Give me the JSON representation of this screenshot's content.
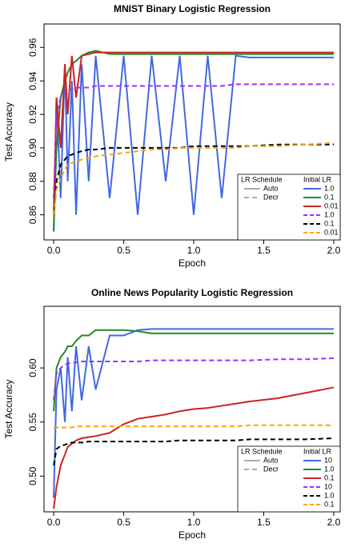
{
  "chart_data": [
    {
      "type": "line",
      "title": "MNIST Binary Logistic Regression",
      "xlabel": "Epoch",
      "ylabel": "Test Accuracy",
      "x": [
        0,
        0.02,
        0.05,
        0.08,
        0.1,
        0.13,
        0.16,
        0.2,
        0.25,
        0.3,
        0.4,
        0.5,
        0.6,
        0.7,
        0.8,
        0.9,
        1.0,
        1.1,
        1.2,
        1.3,
        1.4,
        1.6,
        1.8,
        2.0
      ],
      "series": [
        {
          "name": "1.0",
          "color": "#4169e1",
          "dash": false,
          "values": [
            0.85,
            0.93,
            0.87,
            0.95,
            0.88,
            0.94,
            0.86,
            0.95,
            0.88,
            0.955,
            0.87,
            0.955,
            0.86,
            0.955,
            0.88,
            0.955,
            0.86,
            0.955,
            0.87,
            0.955,
            0.954,
            0.954,
            0.954,
            0.954
          ]
        },
        {
          "name": "0.1",
          "color": "#228b22",
          "dash": false,
          "values": [
            0.85,
            0.9,
            0.93,
            0.94,
            0.945,
            0.95,
            0.952,
            0.955,
            0.957,
            0.958,
            0.956,
            0.956,
            0.956,
            0.956,
            0.956,
            0.956,
            0.956,
            0.956,
            0.956,
            0.956,
            0.956,
            0.956,
            0.956,
            0.956
          ]
        },
        {
          "name": "0.01",
          "color": "#cc2222",
          "dash": false,
          "values": [
            0.86,
            0.93,
            0.9,
            0.95,
            0.92,
            0.955,
            0.93,
            0.955,
            0.956,
            0.957,
            0.957,
            0.957,
            0.957,
            0.957,
            0.957,
            0.957,
            0.957,
            0.957,
            0.957,
            0.957,
            0.957,
            0.957,
            0.957,
            0.957
          ]
        },
        {
          "name": "1.0",
          "color": "#9b30ff",
          "dash": true,
          "values": [
            0.87,
            0.92,
            0.93,
            0.933,
            0.934,
            0.935,
            0.936,
            0.936,
            0.936,
            0.937,
            0.937,
            0.937,
            0.937,
            0.937,
            0.937,
            0.937,
            0.937,
            0.937,
            0.937,
            0.938,
            0.938,
            0.938,
            0.938,
            0.938
          ]
        },
        {
          "name": "0.1",
          "color": "#000000",
          "dash": true,
          "values": [
            0.86,
            0.88,
            0.89,
            0.893,
            0.895,
            0.896,
            0.897,
            0.898,
            0.899,
            0.899,
            0.9,
            0.9,
            0.9,
            0.9,
            0.9,
            0.9,
            0.901,
            0.901,
            0.901,
            0.901,
            0.901,
            0.902,
            0.902,
            0.902
          ]
        },
        {
          "name": "0.01",
          "color": "#ffa500",
          "dash": true,
          "values": [
            0.86,
            0.875,
            0.882,
            0.887,
            0.89,
            0.891,
            0.892,
            0.893,
            0.894,
            0.895,
            0.896,
            0.897,
            0.898,
            0.899,
            0.899,
            0.9,
            0.9,
            0.9,
            0.9,
            0.9,
            0.901,
            0.901,
            0.902,
            0.903
          ]
        }
      ],
      "xlim": [
        -0.069,
        2.046
      ],
      "ylim": [
        0.845,
        0.974
      ],
      "xticks": [
        {
          "value": 0,
          "label": "0.0"
        },
        {
          "value": 0.5,
          "label": "0.5"
        },
        {
          "value": 1,
          "label": "1.0"
        },
        1.5,
        {
          "value": 2,
          "label": "2.0"
        }
      ],
      "yticks": [
        0.86,
        0.88,
        {
          "value": 0.9,
          "label": "0.90"
        },
        0.92,
        0.94,
        0.96
      ],
      "legend": "lower right",
      "legend_title": "Initial LR",
      "schedule_legend": {
        "title": "LR Schedule",
        "entries": [
          "Auto",
          "Decr"
        ]
      }
    },
    {
      "type": "line",
      "title": "Online News Popularity Logistic Regression",
      "xlabel": "Epoch",
      "ylabel": "Test Accuracy",
      "x": [
        0,
        0.02,
        0.05,
        0.08,
        0.1,
        0.13,
        0.16,
        0.2,
        0.25,
        0.3,
        0.4,
        0.5,
        0.6,
        0.7,
        0.8,
        0.9,
        1.0,
        1.1,
        1.2,
        1.3,
        1.4,
        1.6,
        1.8,
        2.0
      ],
      "series": [
        {
          "name": "10",
          "color": "#4169e1",
          "dash": false,
          "values": [
            0.48,
            0.58,
            0.6,
            0.55,
            0.61,
            0.56,
            0.62,
            0.57,
            0.62,
            0.58,
            0.63,
            0.63,
            0.635,
            0.636,
            0.636,
            0.636,
            0.636,
            0.636,
            0.636,
            0.636,
            0.636,
            0.636,
            0.636,
            0.636
          ]
        },
        {
          "name": "1.0",
          "color": "#228b22",
          "dash": false,
          "values": [
            0.56,
            0.6,
            0.61,
            0.615,
            0.62,
            0.62,
            0.625,
            0.63,
            0.63,
            0.635,
            0.635,
            0.635,
            0.634,
            0.632,
            0.632,
            0.632,
            0.632,
            0.632,
            0.632,
            0.632,
            0.632,
            0.632,
            0.632,
            0.632
          ]
        },
        {
          "name": "0.1",
          "color": "#cc2222",
          "dash": false,
          "values": [
            0.47,
            0.49,
            0.51,
            0.52,
            0.527,
            0.53,
            0.533,
            0.535,
            0.536,
            0.537,
            0.54,
            0.548,
            0.553,
            0.555,
            0.557,
            0.56,
            0.562,
            0.563,
            0.565,
            0.567,
            0.569,
            0.572,
            0.577,
            0.582
          ]
        },
        {
          "name": "10",
          "color": "#9b30ff",
          "dash": true,
          "values": [
            0.57,
            0.595,
            0.6,
            0.603,
            0.604,
            0.605,
            0.605,
            0.606,
            0.606,
            0.606,
            0.606,
            0.606,
            0.606,
            0.607,
            0.607,
            0.607,
            0.607,
            0.607,
            0.607,
            0.607,
            0.607,
            0.608,
            0.608,
            0.609
          ]
        },
        {
          "name": "1.0",
          "color": "#000000",
          "dash": true,
          "values": [
            0.51,
            0.525,
            0.528,
            0.529,
            0.53,
            0.531,
            0.531,
            0.531,
            0.532,
            0.532,
            0.532,
            0.532,
            0.532,
            0.532,
            0.532,
            0.533,
            0.533,
            0.533,
            0.533,
            0.533,
            0.534,
            0.534,
            0.534,
            0.535
          ]
        },
        {
          "name": "0.1",
          "color": "#ffa500",
          "dash": true,
          "values": [
            0.545,
            0.545,
            0.545,
            0.545,
            0.545,
            0.545,
            0.546,
            0.546,
            0.546,
            0.546,
            0.546,
            0.546,
            0.546,
            0.546,
            0.546,
            0.546,
            0.546,
            0.546,
            0.546,
            0.546,
            0.547,
            0.547,
            0.547,
            0.547
          ]
        }
      ],
      "xlim": [
        -0.069,
        2.046
      ],
      "ylim": [
        0.467,
        0.657
      ],
      "xticks": [
        {
          "value": 0,
          "label": "0.0"
        },
        {
          "value": 0.5,
          "label": "0.5"
        },
        {
          "value": 1,
          "label": "1.0"
        },
        1.5,
        {
          "value": 2,
          "label": "2.0"
        }
      ],
      "yticks": [
        {
          "value": 0.5,
          "label": "0.50"
        },
        0.55,
        {
          "value": 0.6,
          "label": "0.60"
        }
      ],
      "legend": "lower right",
      "legend_title": "Initial LR",
      "schedule_legend": {
        "title": "LR Schedule",
        "entries": [
          "Auto",
          "Decr"
        ]
      }
    }
  ]
}
